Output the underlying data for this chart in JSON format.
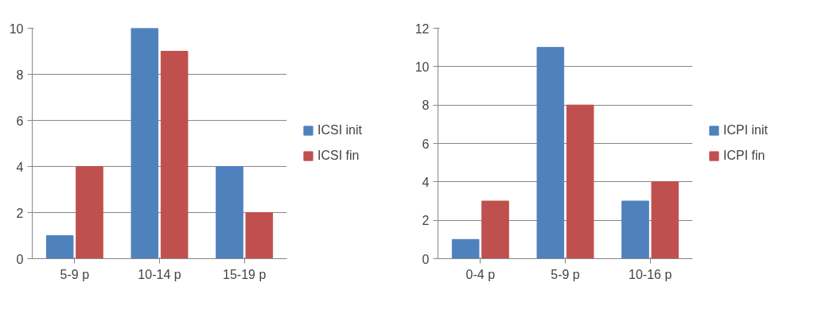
{
  "chart_data": [
    {
      "type": "bar",
      "categories": [
        "5-9 p",
        "10-14 p",
        "15-19 p"
      ],
      "series": [
        {
          "name": "ICSI init",
          "color": "#4f81bd",
          "values": [
            1,
            10,
            4
          ]
        },
        {
          "name": "ICSI fin",
          "color": "#c0504d",
          "values": [
            4,
            9,
            2
          ]
        }
      ],
      "ylim": [
        0,
        10
      ],
      "yticks": [
        0,
        2,
        4,
        6,
        8,
        10
      ],
      "grid": "y",
      "legend": "right"
    },
    {
      "type": "bar",
      "categories": [
        "0-4 p",
        "5-9 p",
        "10-16 p"
      ],
      "series": [
        {
          "name": "ICPI init",
          "color": "#4f81bd",
          "values": [
            1,
            11,
            3
          ]
        },
        {
          "name": "ICPI fin",
          "color": "#c0504d",
          "values": [
            3,
            8,
            4
          ]
        }
      ],
      "ylim": [
        0,
        12
      ],
      "yticks": [
        0,
        2,
        4,
        6,
        8,
        10,
        12
      ],
      "grid": "y",
      "legend": "right"
    }
  ]
}
